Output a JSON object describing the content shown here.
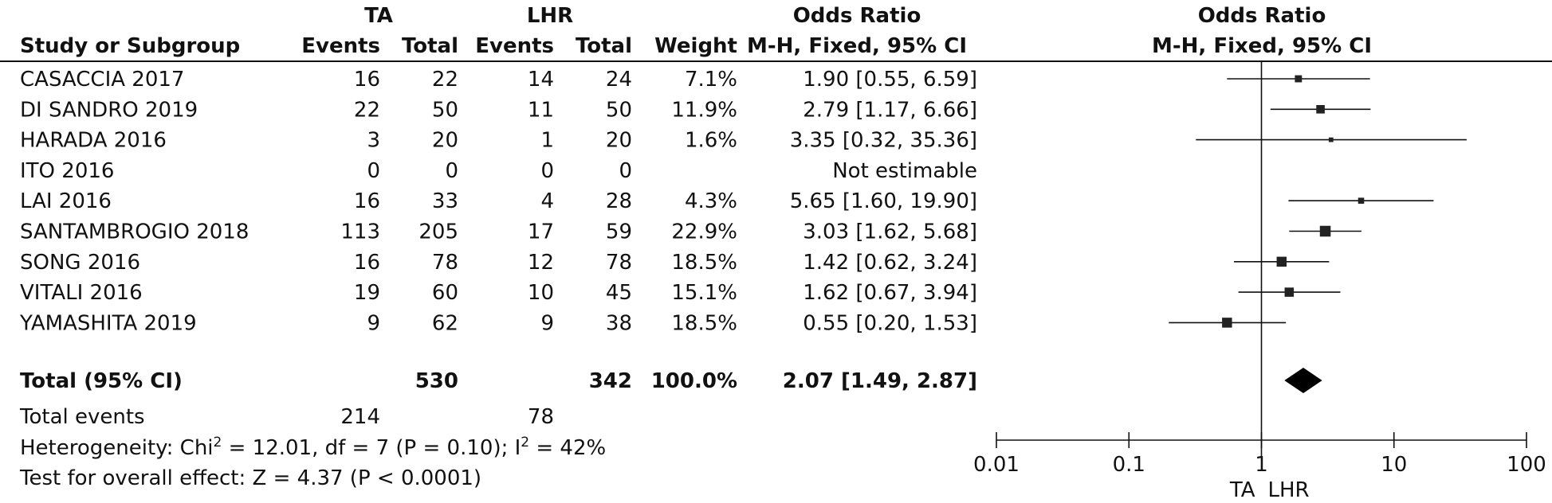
{
  "headers": {
    "group1": "TA",
    "group2": "LHR",
    "study": "Study or Subgroup",
    "events": "Events",
    "total": "Total",
    "weight": "Weight",
    "or_title": "Odds Ratio",
    "or_method": "M-H, Fixed, 95% CI"
  },
  "chart_data": {
    "type": "forest",
    "x_scale": "log",
    "xlim": [
      0.01,
      100
    ],
    "x_ticks": [
      "0.01",
      "0.1",
      "1",
      "10",
      "100"
    ],
    "x_tick_values": [
      0.01,
      0.1,
      1,
      10,
      100
    ],
    "null_line": 1,
    "favours_left": "TA",
    "favours_right": "LHR",
    "studies": [
      {
        "name": "CASACCIA 2017",
        "e1": "16",
        "t1": "22",
        "e2": "14",
        "t2": "24",
        "weight": "7.1%",
        "or_text": "1.90 [0.55, 6.59]",
        "or": 1.9,
        "lo": 0.55,
        "hi": 6.59,
        "w": 7.1
      },
      {
        "name": "DI SANDRO 2019",
        "e1": "22",
        "t1": "50",
        "e2": "11",
        "t2": "50",
        "weight": "11.9%",
        "or_text": "2.79 [1.17, 6.66]",
        "or": 2.79,
        "lo": 1.17,
        "hi": 6.66,
        "w": 11.9
      },
      {
        "name": "HARADA 2016",
        "e1": "3",
        "t1": "20",
        "e2": "1",
        "t2": "20",
        "weight": "1.6%",
        "or_text": "3.35 [0.32, 35.36]",
        "or": 3.35,
        "lo": 0.32,
        "hi": 35.36,
        "w": 1.6
      },
      {
        "name": "ITO 2016",
        "e1": "0",
        "t1": "0",
        "e2": "0",
        "t2": "0",
        "weight": "",
        "or_text": "Not estimable",
        "or": null,
        "lo": null,
        "hi": null,
        "w": 0
      },
      {
        "name": "LAI 2016",
        "e1": "16",
        "t1": "33",
        "e2": "4",
        "t2": "28",
        "weight": "4.3%",
        "or_text": "5.65 [1.60, 19.90]",
        "or": 5.65,
        "lo": 1.6,
        "hi": 19.9,
        "w": 4.3
      },
      {
        "name": "SANTAMBROGIO 2018",
        "e1": "113",
        "t1": "205",
        "e2": "17",
        "t2": "59",
        "weight": "22.9%",
        "or_text": "3.03 [1.62, 5.68]",
        "or": 3.03,
        "lo": 1.62,
        "hi": 5.68,
        "w": 22.9
      },
      {
        "name": "SONG 2016",
        "e1": "16",
        "t1": "78",
        "e2": "12",
        "t2": "78",
        "weight": "18.5%",
        "or_text": "1.42 [0.62, 3.24]",
        "or": 1.42,
        "lo": 0.62,
        "hi": 3.24,
        "w": 18.5
      },
      {
        "name": "VITALI 2016",
        "e1": "19",
        "t1": "60",
        "e2": "10",
        "t2": "45",
        "weight": "15.1%",
        "or_text": "1.62 [0.67, 3.94]",
        "or": 1.62,
        "lo": 0.67,
        "hi": 3.94,
        "w": 15.1
      },
      {
        "name": "YAMASHITA 2019",
        "e1": "9",
        "t1": "62",
        "e2": "9",
        "t2": "38",
        "weight": "18.5%",
        "or_text": "0.55 [0.20, 1.53]",
        "or": 0.55,
        "lo": 0.2,
        "hi": 1.53,
        "w": 18.5
      }
    ],
    "total": {
      "label": "Total (95% CI)",
      "t1": "530",
      "t2": "342",
      "weight": "100.0%",
      "or_text": "2.07 [1.49, 2.87]",
      "or": 2.07,
      "lo": 1.49,
      "hi": 2.87
    },
    "total_events": {
      "label": "Total events",
      "e1": "214",
      "e2": "78"
    },
    "heterogeneity": {
      "prefix": "Heterogeneity: Chi",
      "chi_sup": "2",
      "mid": " = 12.01, df = 7 (P = 0.10); I",
      "i_sup": "2",
      "suffix": " = 42%"
    },
    "overall_effect": "Test for overall effect: Z = 4.37 (P < 0.0001)"
  }
}
